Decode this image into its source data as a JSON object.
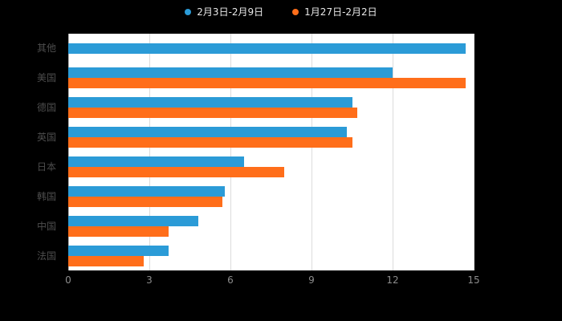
{
  "chart_data": {
    "type": "bar",
    "orientation": "horizontal",
    "title": "",
    "xlabel": "",
    "ylabel": "",
    "categories": [
      "其他",
      "美国",
      "德国",
      "英国",
      "日本",
      "韩国",
      "中国",
      "法国"
    ],
    "series": [
      {
        "name": "2月3日-2月9日",
        "color": "#2b9bd7",
        "values": [
          14.7,
          12.0,
          10.5,
          10.3,
          6.5,
          5.8,
          4.8,
          3.7
        ]
      },
      {
        "name": "1月27日-2月2日",
        "color": "#ff6e1a",
        "values": [
          0,
          14.7,
          10.7,
          10.5,
          8.0,
          5.7,
          3.7,
          2.8
        ]
      }
    ],
    "xlim": [
      0,
      15
    ],
    "xticks": [
      0,
      3,
      6,
      9,
      12,
      15
    ],
    "grid": true,
    "legend_position": "top",
    "background": "#000000",
    "plot_background": "#ffffff"
  }
}
